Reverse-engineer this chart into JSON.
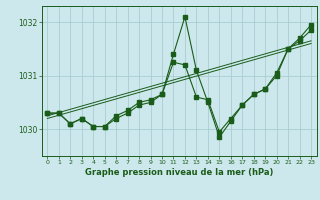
{
  "background_color": "#cde8ec",
  "grid_color": "#a8cdd2",
  "line_color": "#1a5c1a",
  "title": "Graphe pression niveau de la mer (hPa)",
  "ylim": [
    1029.5,
    1032.3
  ],
  "xlim": [
    -0.5,
    23.5
  ],
  "yticks": [
    1030,
    1031,
    1032
  ],
  "xticks": [
    0,
    1,
    2,
    3,
    4,
    5,
    6,
    7,
    8,
    9,
    10,
    11,
    12,
    13,
    14,
    15,
    16,
    17,
    18,
    19,
    20,
    21,
    22,
    23
  ],
  "series1_x": [
    0,
    1,
    2,
    3,
    4,
    5,
    6,
    7,
    8,
    9,
    10,
    11,
    12,
    13,
    14,
    15,
    16,
    17,
    18,
    19,
    20,
    21,
    22,
    23
  ],
  "series1_y": [
    1030.3,
    1030.3,
    1030.1,
    1030.2,
    1030.05,
    1030.05,
    1030.2,
    1030.3,
    1030.45,
    1030.5,
    1030.65,
    1031.4,
    1032.1,
    1031.1,
    1030.5,
    1029.85,
    1030.15,
    1030.45,
    1030.65,
    1030.75,
    1031.0,
    1031.5,
    1031.65,
    1031.85
  ],
  "series2_x": [
    0,
    1,
    2,
    3,
    4,
    5,
    6,
    7,
    8,
    9,
    10,
    11,
    12,
    13,
    14,
    15,
    16,
    17,
    18,
    19,
    20,
    21,
    22,
    23
  ],
  "series2_y": [
    1030.3,
    1030.3,
    1030.1,
    1030.2,
    1030.05,
    1030.05,
    1030.25,
    1030.35,
    1030.5,
    1030.55,
    1030.65,
    1031.25,
    1031.2,
    1030.6,
    1030.55,
    1029.95,
    1030.2,
    1030.45,
    1030.65,
    1030.75,
    1031.05,
    1031.5,
    1031.7,
    1031.95
  ],
  "trend1_x": [
    0,
    23
  ],
  "trend1_y": [
    1030.2,
    1031.6
  ],
  "trend2_x": [
    0,
    23
  ],
  "trend2_y": [
    1030.25,
    1031.65
  ]
}
